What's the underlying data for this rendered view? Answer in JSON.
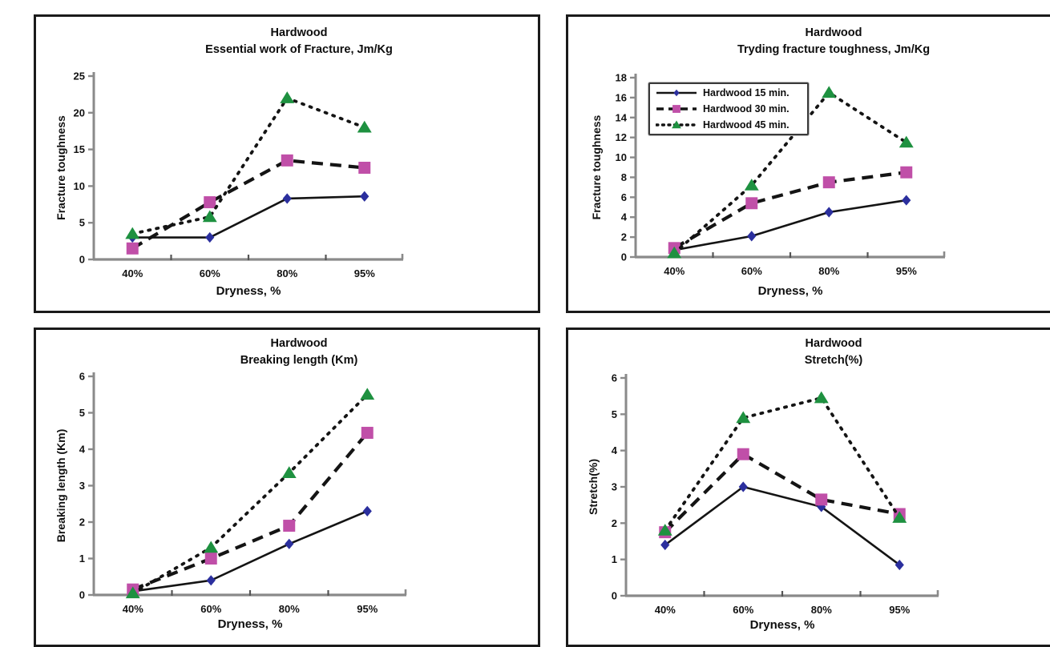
{
  "colors": {
    "axis": "#8a8a8a",
    "text": "#111111",
    "line": "#141414",
    "panel_border": "#1a1a1a",
    "legend_border": "#3a3a3a",
    "marker_15min": "#2b2f9e",
    "marker_30min": "#c04fa8",
    "marker_45min": "#1e9140"
  },
  "chart_data": [
    {
      "type": "line",
      "title_line1": "Hardwood",
      "title_line2": "Essential work of Fracture, Jm/Kg",
      "ylabel": "Fracture toughness",
      "xlabel": "Dryness, %",
      "categories": [
        "40%",
        "60%",
        "80%",
        "95%"
      ],
      "ylim": [
        0,
        25
      ],
      "ytick_step": 5,
      "grid": false,
      "legend": false,
      "series": [
        {
          "name": "Hardwood 15 min.",
          "values": [
            3.0,
            3.0,
            8.3,
            8.6
          ],
          "line": "solid",
          "line_color": "#141414",
          "marker": "diamond",
          "color": "#2b2f9e"
        },
        {
          "name": "Hardwood 30 min.",
          "values": [
            1.5,
            7.8,
            13.5,
            12.5
          ],
          "line": "dashed",
          "line_color": "#141414",
          "marker": "square",
          "color": "#c04fa8"
        },
        {
          "name": "Hardwood 45 min.",
          "values": [
            3.5,
            5.8,
            22.0,
            18.0
          ],
          "line": "dotted",
          "line_color": "#141414",
          "marker": "triangle",
          "color": "#1e9140"
        }
      ]
    },
    {
      "type": "line",
      "title_line1": "Hardwood",
      "title_line2": "Tryding fracture toughness, Jm/Kg",
      "ylabel": "Fracture toughness",
      "xlabel": "Dryness, %",
      "categories": [
        "40%",
        "60%",
        "80%",
        "95%"
      ],
      "ylim": [
        0,
        18
      ],
      "ytick_step": 2,
      "grid": false,
      "legend": true,
      "legend_position": "top-left",
      "series": [
        {
          "name": "Hardwood 15 min.",
          "values": [
            0.7,
            2.1,
            4.5,
            5.7
          ],
          "line": "solid",
          "line_color": "#141414",
          "marker": "diamond",
          "color": "#2b2f9e"
        },
        {
          "name": "Hardwood 30 min.",
          "values": [
            0.9,
            5.4,
            7.5,
            8.5
          ],
          "line": "dashed",
          "line_color": "#141414",
          "marker": "square",
          "color": "#c04fa8"
        },
        {
          "name": "Hardwood 45 min.",
          "values": [
            0.4,
            7.2,
            16.5,
            11.5
          ],
          "line": "dotted",
          "line_color": "#141414",
          "marker": "triangle",
          "color": "#1e9140"
        }
      ]
    },
    {
      "type": "line",
      "title_line1": "Hardwood",
      "title_line2": "Breaking length (Km)",
      "ylabel": "Breaking length (Km)",
      "xlabel": "Dryness, %",
      "categories": [
        "40%",
        "60%",
        "80%",
        "95%"
      ],
      "ylim": [
        0,
        6
      ],
      "ytick_step": 1,
      "grid": false,
      "legend": false,
      "series": [
        {
          "name": "Hardwood 15 min.",
          "values": [
            0.1,
            0.4,
            1.4,
            2.3
          ],
          "line": "solid",
          "line_color": "#141414",
          "marker": "diamond",
          "color": "#2b2f9e"
        },
        {
          "name": "Hardwood 30 min.",
          "values": [
            0.15,
            1.0,
            1.9,
            4.45
          ],
          "line": "dashed",
          "line_color": "#141414",
          "marker": "square",
          "color": "#c04fa8"
        },
        {
          "name": "Hardwood 45 min.",
          "values": [
            0.05,
            1.3,
            3.35,
            5.5
          ],
          "line": "dotted",
          "line_color": "#141414",
          "marker": "triangle",
          "color": "#1e9140"
        }
      ]
    },
    {
      "type": "line",
      "title_line1": "Hardwood",
      "title_line2": "Stretch(%)",
      "ylabel": "Stretch(%)",
      "xlabel": "Dryness, %",
      "categories": [
        "40%",
        "60%",
        "80%",
        "95%"
      ],
      "ylim": [
        0,
        6
      ],
      "ytick_step": 1,
      "grid": false,
      "legend": false,
      "series": [
        {
          "name": "Hardwood 15 min.",
          "values": [
            1.4,
            3.0,
            2.45,
            0.85
          ],
          "line": "solid",
          "line_color": "#141414",
          "marker": "diamond",
          "color": "#2b2f9e"
        },
        {
          "name": "Hardwood 30 min.",
          "values": [
            1.75,
            3.9,
            2.65,
            2.25
          ],
          "line": "dashed",
          "line_color": "#141414",
          "marker": "square",
          "color": "#c04fa8"
        },
        {
          "name": "Hardwood 45 min.",
          "values": [
            1.8,
            4.9,
            5.45,
            2.15
          ],
          "line": "dotted",
          "line_color": "#141414",
          "marker": "triangle",
          "color": "#1e9140"
        }
      ]
    }
  ]
}
